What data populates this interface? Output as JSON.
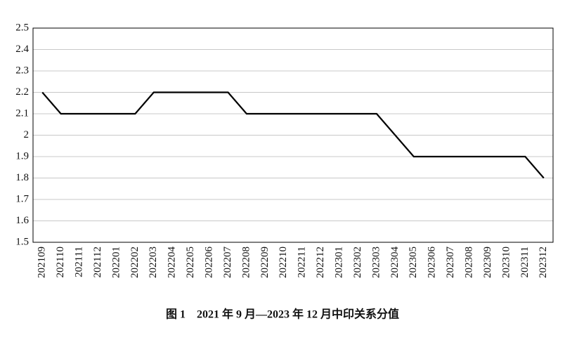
{
  "chart_data": {
    "type": "line",
    "title": "图 1　2021 年 9 月—2023 年 12 月中印关系分值",
    "categories": [
      "202109",
      "202110",
      "202111",
      "202112",
      "202201",
      "202202",
      "202203",
      "202204",
      "202205",
      "202206",
      "202207",
      "202208",
      "202209",
      "202210",
      "202211",
      "202212",
      "202301",
      "202302",
      "202303",
      "202304",
      "202305",
      "202306",
      "202307",
      "202308",
      "202309",
      "202310",
      "202311",
      "202312"
    ],
    "values": [
      2.2,
      2.1,
      2.1,
      2.1,
      2.1,
      2.1,
      2.2,
      2.2,
      2.2,
      2.2,
      2.2,
      2.1,
      2.1,
      2.1,
      2.1,
      2.1,
      2.1,
      2.1,
      2.1,
      2.0,
      1.9,
      1.9,
      1.9,
      1.9,
      1.9,
      1.9,
      1.9,
      1.8
    ],
    "color": "#000000",
    "ylim": [
      1.5,
      2.5
    ],
    "yticks": [
      1.5,
      1.6,
      1.7,
      1.8,
      1.9,
      2,
      2.1,
      2.2,
      2.3,
      2.4,
      2.5
    ],
    "grid": true
  }
}
